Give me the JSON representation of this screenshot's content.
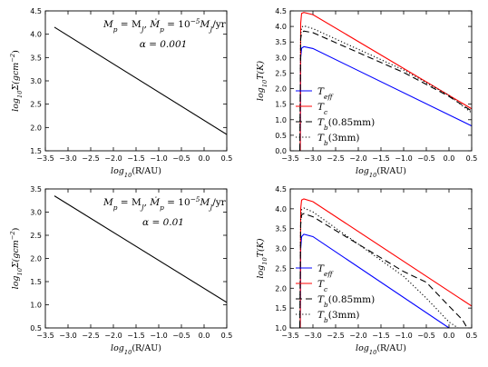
{
  "chart_data": [
    {
      "type": "line",
      "xlabel": "log10(R/AU)",
      "ylabel": "log10Σ(gcm−2)",
      "xlim": [
        -3.5,
        0.5
      ],
      "ylim": [
        1.5,
        4.5
      ],
      "xticks": [
        "−3.5",
        "−3.0",
        "−2.5",
        "−2.0",
        "−1.5",
        "−1.0",
        "−0.5",
        "0.0",
        "0.5"
      ],
      "yticks": [
        "1.5",
        "2.0",
        "2.5",
        "3.0",
        "3.5",
        "4.0",
        "4.5"
      ],
      "annotations": [
        "Mp = MJ,   Ṁp = 10−5 MJ/yr",
        "α = 0.001"
      ],
      "series": [
        {
          "color": "#000000",
          "dash": "",
          "points": [
            [
              -3.3,
              4.15
            ],
            [
              0.5,
              1.85
            ]
          ]
        }
      ]
    },
    {
      "type": "line",
      "xlabel": "log10(R/AU)",
      "ylabel": "log10T(K)",
      "xlim": [
        -3.5,
        0.5
      ],
      "ylim": [
        0.0,
        4.5
      ],
      "xticks": [
        "−3.5",
        "−3.0",
        "−2.5",
        "−2.0",
        "−1.5",
        "−1.0",
        "−0.5",
        "0.0",
        "0.5"
      ],
      "yticks": [
        "0.0",
        "0.5",
        "1.0",
        "1.5",
        "2.0",
        "2.5",
        "3.0",
        "3.5",
        "4.0",
        "4.5"
      ],
      "legend": "lower-left",
      "series": [
        {
          "name": "Teff",
          "color": "#0000ff",
          "dash": "",
          "points": [
            [
              -3.28,
              0.0
            ],
            [
              -3.27,
              3.0
            ],
            [
              -3.25,
              3.3
            ],
            [
              -3.2,
              3.35
            ],
            [
              -3.0,
              3.29
            ],
            [
              0.5,
              0.8
            ]
          ]
        },
        {
          "name": "Tc",
          "color": "#ff0000",
          "dash": "",
          "points": [
            [
              -3.28,
              0.0
            ],
            [
              -3.27,
              4.1
            ],
            [
              -3.25,
              4.42
            ],
            [
              -3.2,
              4.45
            ],
            [
              -3.0,
              4.38
            ],
            [
              0.5,
              1.35
            ]
          ]
        },
        {
          "name": "Tb(0.85mm)",
          "color": "#000000",
          "dash": "7,4",
          "points": [
            [
              -3.29,
              0.0
            ],
            [
              -3.27,
              3.6
            ],
            [
              -3.25,
              3.8
            ],
            [
              -3.2,
              3.85
            ],
            [
              -3.0,
              3.8
            ],
            [
              -1.0,
              2.52
            ],
            [
              0.0,
              1.75
            ],
            [
              0.5,
              1.28
            ]
          ]
        },
        {
          "name": "Tb(3mm)",
          "color": "#000000",
          "dash": "1.2,2.4",
          "points": [
            [
              -3.29,
              0.0
            ],
            [
              -3.27,
              3.7
            ],
            [
              -3.25,
              3.98
            ],
            [
              -3.2,
              4.02
            ],
            [
              -3.0,
              3.93
            ],
            [
              -1.0,
              2.6
            ],
            [
              0.0,
              1.78
            ],
            [
              0.5,
              1.22
            ]
          ]
        }
      ]
    },
    {
      "type": "line",
      "xlabel": "log10(R/AU)",
      "ylabel": "log10Σ(gcm−2)",
      "xlim": [
        -3.5,
        0.5
      ],
      "ylim": [
        0.5,
        3.5
      ],
      "xticks": [
        "−3.5",
        "−3.0",
        "−2.5",
        "−2.0",
        "−1.5",
        "−1.0",
        "−0.5",
        "0.0",
        "0.5"
      ],
      "yticks": [
        "0.5",
        "1.0",
        "1.5",
        "2.0",
        "2.5",
        "3.0",
        "3.5"
      ],
      "annotations": [
        "Mp = MJ,   Ṁp = 10−5 MJ/yr",
        "α = 0.01"
      ],
      "series": [
        {
          "color": "#000000",
          "dash": "",
          "points": [
            [
              -3.3,
              3.35
            ],
            [
              0.5,
              1.05
            ]
          ]
        }
      ]
    },
    {
      "type": "line",
      "xlabel": "log10(R/AU)",
      "ylabel": "log10T(K)",
      "xlim": [
        -3.5,
        0.5
      ],
      "ylim": [
        1.0,
        4.5
      ],
      "xticks": [
        "−3.5",
        "−3.0",
        "−2.5",
        "−2.0",
        "−1.5",
        "−1.0",
        "−0.5",
        "0.0",
        "0.5"
      ],
      "yticks": [
        "1.0",
        "1.5",
        "2.0",
        "2.5",
        "3.0",
        "3.5",
        "4.0",
        "4.5"
      ],
      "legend": "lower-left",
      "series": [
        {
          "name": "Teff",
          "color": "#0000ff",
          "dash": "",
          "points": [
            [
              -3.28,
              1.0
            ],
            [
              -3.27,
              3.0
            ],
            [
              -3.25,
              3.3
            ],
            [
              -3.2,
              3.36
            ],
            [
              -3.0,
              3.3
            ],
            [
              0.0,
              1.0
            ]
          ]
        },
        {
          "name": "Tc",
          "color": "#ff0000",
          "dash": "",
          "points": [
            [
              -3.28,
              1.0
            ],
            [
              -3.27,
              4.0
            ],
            [
              -3.25,
              4.22
            ],
            [
              -3.2,
              4.25
            ],
            [
              -3.0,
              4.18
            ],
            [
              0.5,
              1.55
            ]
          ]
        },
        {
          "name": "Tb(0.85mm)",
          "color": "#000000",
          "dash": "7,4",
          "points": [
            [
              -3.29,
              1.0
            ],
            [
              -3.27,
              3.6
            ],
            [
              -3.25,
              3.85
            ],
            [
              -3.2,
              3.88
            ],
            [
              -3.0,
              3.8
            ],
            [
              -1.0,
              2.42
            ],
            [
              -0.5,
              2.15
            ],
            [
              0.0,
              1.55
            ],
            [
              0.3,
              1.2
            ],
            [
              0.4,
              1.0
            ]
          ]
        },
        {
          "name": "Tb(3mm)",
          "color": "#000000",
          "dash": "1.2,2.4",
          "points": [
            [
              -3.29,
              1.0
            ],
            [
              -3.27,
              3.7
            ],
            [
              -3.25,
              3.98
            ],
            [
              -3.2,
              4.02
            ],
            [
              -3.0,
              3.92
            ],
            [
              -1.0,
              2.3
            ],
            [
              -0.5,
              1.75
            ],
            [
              0.0,
              1.15
            ],
            [
              0.2,
              1.0
            ]
          ]
        }
      ]
    }
  ]
}
